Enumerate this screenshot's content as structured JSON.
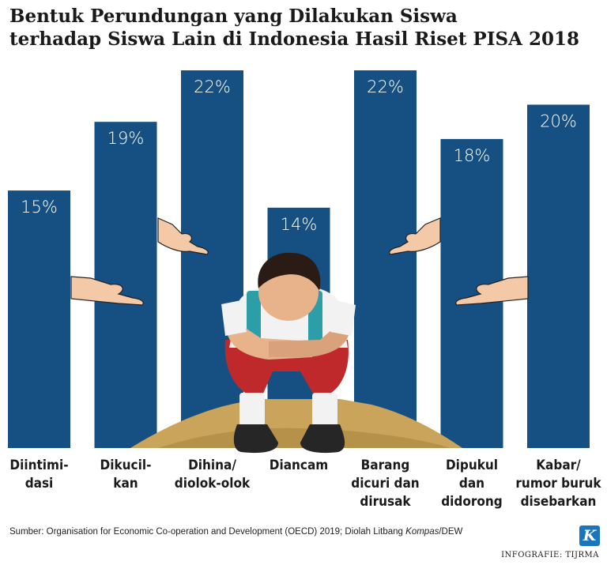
{
  "header": {
    "title_line1": "Bentuk Perundungan yang Dilakukan Siswa",
    "title_line2": "terhadap Siswa Lain di Indonesia Hasil Riset PISA 2018"
  },
  "footer": {
    "source_prefix": "Sumber: Organisation for Economic Co-operation and Development (OECD) 2019; Diolah Litbang ",
    "source_italic": "Kompas",
    "source_suffix": "/DEW",
    "logo_letter": "K",
    "credit": "INFOGRAFIE: TIJRMA"
  },
  "chart_data": {
    "type": "bar",
    "title": "Bentuk Perundungan yang Dilakukan Siswa terhadap Siswa Lain di Indonesia Hasil Riset PISA 2018",
    "categories": [
      [
        "Diintimi-",
        "dasi"
      ],
      [
        "Dikucil-",
        "kan"
      ],
      [
        "Dihina/",
        "diolok-olok"
      ],
      [
        "Diancam"
      ],
      [
        "Barang",
        "dicuri dan",
        "dirusak"
      ],
      [
        "Dipukul",
        "dan",
        "didorong"
      ],
      [
        "Kabar/",
        "rumor buruk",
        "disebarkan"
      ]
    ],
    "values": [
      15,
      19,
      22,
      14,
      22,
      18,
      20
    ],
    "data_labels": [
      "15%",
      "19%",
      "22%",
      "14%",
      "22%",
      "18%",
      "20%"
    ],
    "ylim": [
      0,
      22
    ],
    "grid": false,
    "colors": {
      "bar": "#164f82",
      "bar_label": "#ffffff",
      "ground": "#c9a45a"
    }
  }
}
